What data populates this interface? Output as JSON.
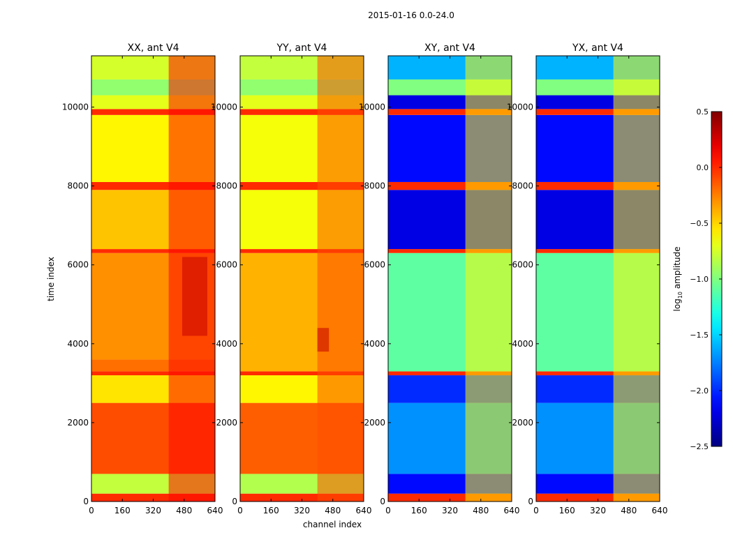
{
  "figure": {
    "suptitle": "2015-01-16 0.0-24.0",
    "xlabel": "channel index",
    "ylabel": "time index",
    "colorbar_label": "log10 amplitude",
    "colorbar_label_base": "log",
    "colorbar_label_sub": "10",
    "colorbar_label_rest": " amplitude"
  },
  "chart_data": {
    "type": "heatmap",
    "colormap": "jet",
    "xlim": [
      0,
      640
    ],
    "ylim": [
      0,
      11300
    ],
    "xticks": [
      0,
      160,
      320,
      480,
      640
    ],
    "xtick_labels": [
      "0",
      "160",
      "320",
      "480",
      "640"
    ],
    "yticks": [
      0,
      2000,
      4000,
      6000,
      8000,
      10000
    ],
    "ytick_labels": [
      "0",
      "2000",
      "4000",
      "6000",
      "8000",
      "10000"
    ],
    "clim": [
      -2.5,
      0.5
    ],
    "colorbar_ticks": [
      0.5,
      0.0,
      -0.5,
      -1.0,
      -1.5,
      -2.0,
      -2.5
    ],
    "colorbar_tick_labels": [
      "0.5",
      "0.0",
      "−0.5",
      "−1.0",
      "−1.5",
      "−2.0",
      "−2.5"
    ],
    "panels": [
      {
        "title": "XX, ant V4",
        "bands": [
          {
            "y0": 0,
            "y1": 200,
            "value": 0.0
          },
          {
            "y0": 200,
            "y1": 700,
            "value": -0.8
          },
          {
            "y0": 700,
            "y1": 2500,
            "value": -0.1
          },
          {
            "y0": 2500,
            "y1": 3200,
            "value": -0.55
          },
          {
            "y0": 3200,
            "y1": 3300,
            "value": 0.0
          },
          {
            "y0": 3300,
            "y1": 3600,
            "value": -0.2
          },
          {
            "y0": 3600,
            "y1": 6300,
            "value": -0.3
          },
          {
            "y0": 6300,
            "y1": 6400,
            "value": 0.0
          },
          {
            "y0": 6400,
            "y1": 7900,
            "value": -0.45
          },
          {
            "y0": 7900,
            "y1": 8100,
            "value": 0.0
          },
          {
            "y0": 8100,
            "y1": 9800,
            "value": -0.6
          },
          {
            "y0": 9800,
            "y1": 9950,
            "value": 0.0
          },
          {
            "y0": 9950,
            "y1": 10300,
            "value": -0.7
          },
          {
            "y0": 10300,
            "y1": 10700,
            "value": -0.95
          },
          {
            "y0": 10700,
            "y1": 11300,
            "value": -0.75
          }
        ],
        "column_features": [
          {
            "x0": 400,
            "x1": 640,
            "value": 0.1,
            "y0": 0,
            "y1": 11300
          },
          {
            "x0": 470,
            "x1": 600,
            "value": 0.3,
            "y0": 4200,
            "y1": 6200
          }
        ]
      },
      {
        "title": "YY, ant V4",
        "bands": [
          {
            "y0": 0,
            "y1": 200,
            "value": 0.0
          },
          {
            "y0": 200,
            "y1": 700,
            "value": -0.85
          },
          {
            "y0": 700,
            "y1": 2500,
            "value": -0.15
          },
          {
            "y0": 2500,
            "y1": 3200,
            "value": -0.6
          },
          {
            "y0": 3200,
            "y1": 3300,
            "value": 0.0
          },
          {
            "y0": 3300,
            "y1": 6300,
            "value": -0.4
          },
          {
            "y0": 6300,
            "y1": 6400,
            "value": 0.0
          },
          {
            "y0": 6400,
            "y1": 7900,
            "value": -0.65
          },
          {
            "y0": 7900,
            "y1": 8100,
            "value": 0.0
          },
          {
            "y0": 8100,
            "y1": 9800,
            "value": -0.65
          },
          {
            "y0": 9800,
            "y1": 9950,
            "value": 0.0
          },
          {
            "y0": 9950,
            "y1": 10300,
            "value": -0.7
          },
          {
            "y0": 10300,
            "y1": 10700,
            "value": -0.95
          },
          {
            "y0": 10700,
            "y1": 11300,
            "value": -0.8
          }
        ],
        "column_features": [
          {
            "x0": 400,
            "x1": 640,
            "value": -0.1,
            "y0": 0,
            "y1": 11300
          },
          {
            "x0": 400,
            "x1": 460,
            "value": 0.3,
            "y0": 3800,
            "y1": 4400
          }
        ]
      },
      {
        "title": "XY, ant V4",
        "bands": [
          {
            "y0": 0,
            "y1": 200,
            "value": 0.0
          },
          {
            "y0": 200,
            "y1": 700,
            "value": -2.1
          },
          {
            "y0": 700,
            "y1": 2500,
            "value": -1.7
          },
          {
            "y0": 2500,
            "y1": 3200,
            "value": -2.0
          },
          {
            "y0": 3200,
            "y1": 3300,
            "value": 0.0
          },
          {
            "y0": 3300,
            "y1": 6300,
            "value": -1.1
          },
          {
            "y0": 6300,
            "y1": 6400,
            "value": 0.0
          },
          {
            "y0": 6400,
            "y1": 7900,
            "value": -2.2
          },
          {
            "y0": 7900,
            "y1": 8100,
            "value": 0.0
          },
          {
            "y0": 8100,
            "y1": 9800,
            "value": -2.1
          },
          {
            "y0": 9800,
            "y1": 9950,
            "value": 0.0
          },
          {
            "y0": 9950,
            "y1": 10300,
            "value": -2.2
          },
          {
            "y0": 10300,
            "y1": 10700,
            "value": -1.0
          },
          {
            "y0": 10700,
            "y1": 11300,
            "value": -1.6
          }
        ],
        "column_features": [
          {
            "x0": 400,
            "x1": 640,
            "value": -0.6,
            "y0": 0,
            "y1": 11300
          }
        ]
      },
      {
        "title": "YX, ant V4",
        "bands": [
          {
            "y0": 0,
            "y1": 200,
            "value": 0.0
          },
          {
            "y0": 200,
            "y1": 700,
            "value": -2.1
          },
          {
            "y0": 700,
            "y1": 2500,
            "value": -1.7
          },
          {
            "y0": 2500,
            "y1": 3200,
            "value": -2.0
          },
          {
            "y0": 3200,
            "y1": 3300,
            "value": 0.0
          },
          {
            "y0": 3300,
            "y1": 6300,
            "value": -1.1
          },
          {
            "y0": 6300,
            "y1": 6400,
            "value": 0.0
          },
          {
            "y0": 6400,
            "y1": 7900,
            "value": -2.2
          },
          {
            "y0": 7900,
            "y1": 8100,
            "value": 0.0
          },
          {
            "y0": 8100,
            "y1": 9800,
            "value": -2.1
          },
          {
            "y0": 9800,
            "y1": 9950,
            "value": 0.0
          },
          {
            "y0": 9950,
            "y1": 10300,
            "value": -2.2
          },
          {
            "y0": 10300,
            "y1": 10700,
            "value": -1.0
          },
          {
            "y0": 10700,
            "y1": 11300,
            "value": -1.6
          }
        ],
        "column_features": [
          {
            "x0": 400,
            "x1": 640,
            "value": -0.6,
            "y0": 0,
            "y1": 11300
          }
        ]
      }
    ]
  }
}
